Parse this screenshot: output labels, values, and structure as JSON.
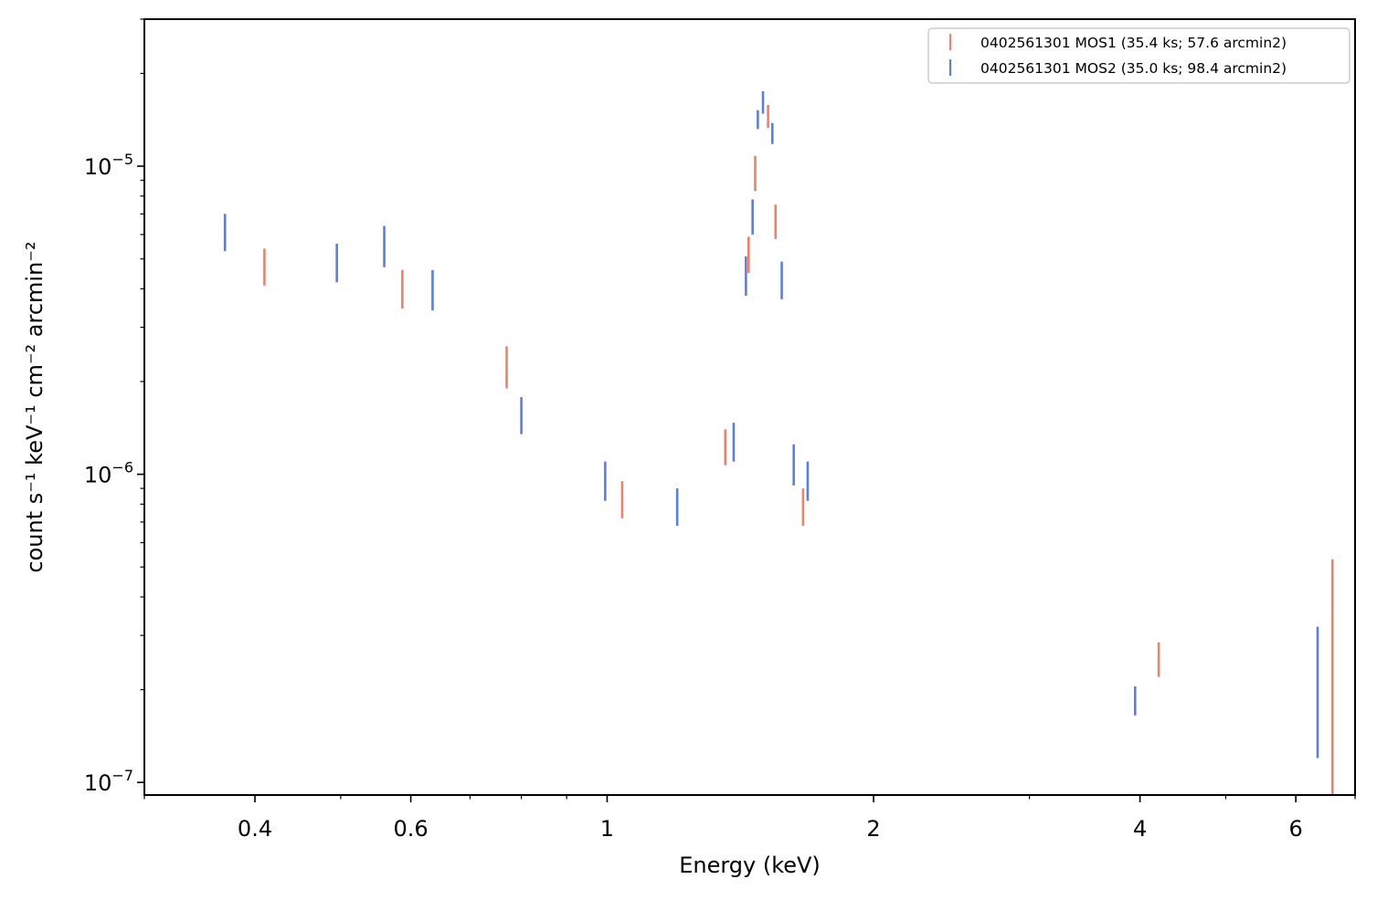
{
  "chart_data": {
    "type": "scatter",
    "title": "",
    "xlabel": "Energy (keV)",
    "ylabel": "count s⁻¹ keV⁻¹ cm⁻² arcmin⁻²",
    "xscale": "log",
    "yscale": "log",
    "xlim": [
      0.3,
      7.0
    ],
    "ylim": [
      9.1e-08,
      3e-05
    ],
    "x_ticks": [
      {
        "value": 0.4,
        "label": "0.4"
      },
      {
        "value": 0.6,
        "label": "0.6"
      },
      {
        "value": 1,
        "label": "1"
      },
      {
        "value": 2,
        "label": "2"
      },
      {
        "value": 4,
        "label": "4"
      },
      {
        "value": 6,
        "label": "6"
      }
    ],
    "x_minor_ticks": [
      0.3,
      0.5,
      0.7,
      0.8,
      0.9,
      3,
      5,
      7
    ],
    "y_ticks": [
      {
        "value": 1e-07,
        "base": "10",
        "exp": "−7"
      },
      {
        "value": 1e-06,
        "base": "10",
        "exp": "−6"
      },
      {
        "value": 1e-05,
        "base": "10",
        "exp": "−5"
      }
    ],
    "y_minor_ticks": [
      2e-07,
      3e-07,
      4e-07,
      5e-07,
      6e-07,
      7e-07,
      8e-07,
      9e-07,
      2e-06,
      3e-06,
      4e-06,
      5e-06,
      6e-06,
      7e-06,
      8e-06,
      9e-06,
      2e-05,
      3e-05
    ],
    "grid": false,
    "legend_position": "top-right",
    "series": [
      {
        "name": "0402561301 MOS1 (35.4 ks; 57.6 arcmin2)",
        "color": "#f08068",
        "points": [
          {
            "x": 0.41,
            "ylo": 4.1e-06,
            "yhi": 5.4e-06
          },
          {
            "x": 0.587,
            "ylo": 3.45e-06,
            "yhi": 4.6e-06
          },
          {
            "x": 0.77,
            "ylo": 1.9e-06,
            "yhi": 2.6e-06
          },
          {
            "x": 1.04,
            "ylo": 7.2e-07,
            "yhi": 9.5e-07
          },
          {
            "x": 1.36,
            "ylo": 1.07e-06,
            "yhi": 1.4e-06
          },
          {
            "x": 1.445,
            "ylo": 4.5e-06,
            "yhi": 5.9e-06
          },
          {
            "x": 1.47,
            "ylo": 8.3e-06,
            "yhi": 1.08e-05
          },
          {
            "x": 1.52,
            "ylo": 1.33e-05,
            "yhi": 1.58e-05
          },
          {
            "x": 1.55,
            "ylo": 5.8e-06,
            "yhi": 7.5e-06
          },
          {
            "x": 1.665,
            "ylo": 6.8e-07,
            "yhi": 9e-07
          },
          {
            "x": 4.2,
            "ylo": 2.2e-07,
            "yhi": 2.85e-07
          },
          {
            "x": 6.6,
            "ylo": 9.1e-08,
            "yhi": 5.3e-07
          }
        ]
      },
      {
        "name": "0402561301 MOS2 (35.0 ks; 98.4 arcmin2)",
        "color": "#5b7fe0",
        "points": [
          {
            "x": 0.37,
            "ylo": 5.3e-06,
            "yhi": 7e-06
          },
          {
            "x": 0.495,
            "ylo": 4.2e-06,
            "yhi": 5.6e-06
          },
          {
            "x": 0.56,
            "ylo": 4.7e-06,
            "yhi": 6.4e-06
          },
          {
            "x": 0.635,
            "ylo": 3.4e-06,
            "yhi": 4.6e-06
          },
          {
            "x": 0.8,
            "ylo": 1.35e-06,
            "yhi": 1.78e-06
          },
          {
            "x": 0.995,
            "ylo": 8.2e-07,
            "yhi": 1.1e-06
          },
          {
            "x": 1.2,
            "ylo": 6.8e-07,
            "yhi": 9e-07
          },
          {
            "x": 1.39,
            "ylo": 1.1e-06,
            "yhi": 1.47e-06
          },
          {
            "x": 1.435,
            "ylo": 3.8e-06,
            "yhi": 5.1e-06
          },
          {
            "x": 1.46,
            "ylo": 6e-06,
            "yhi": 7.8e-06
          },
          {
            "x": 1.48,
            "ylo": 1.32e-05,
            "yhi": 1.52e-05
          },
          {
            "x": 1.5,
            "ylo": 1.48e-05,
            "yhi": 1.75e-05
          },
          {
            "x": 1.537,
            "ylo": 1.18e-05,
            "yhi": 1.38e-05
          },
          {
            "x": 1.575,
            "ylo": 3.7e-06,
            "yhi": 4.9e-06
          },
          {
            "x": 1.625,
            "ylo": 9.2e-07,
            "yhi": 1.25e-06
          },
          {
            "x": 1.685,
            "ylo": 8.2e-07,
            "yhi": 1.1e-06
          },
          {
            "x": 3.95,
            "ylo": 1.65e-07,
            "yhi": 2.05e-07
          },
          {
            "x": 6.35,
            "ylo": 1.2e-07,
            "yhi": 3.2e-07
          }
        ]
      }
    ]
  }
}
